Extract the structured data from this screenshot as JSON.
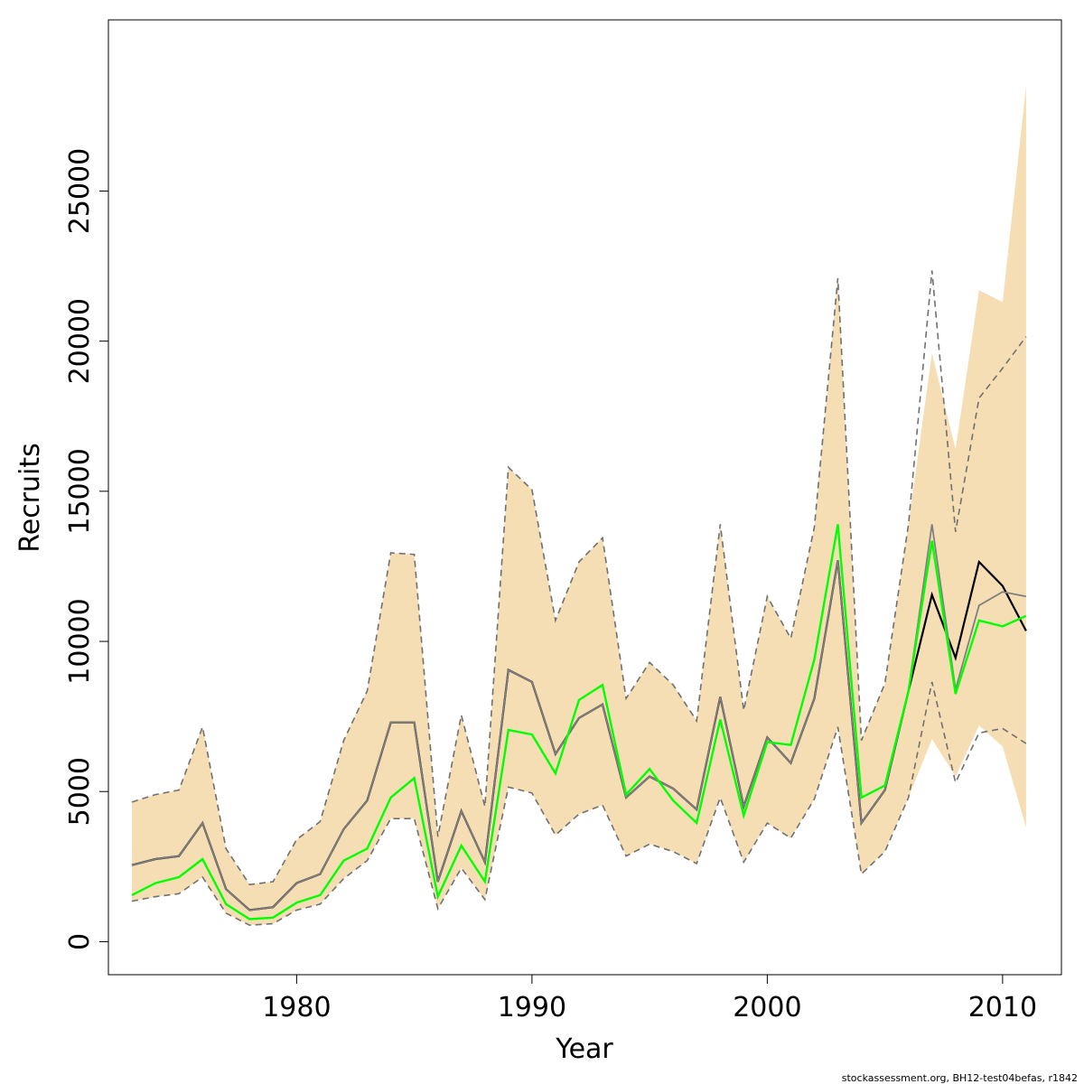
{
  "chart_data": {
    "type": "line",
    "xlabel": "Year",
    "ylabel": "Recruits",
    "xlim": [
      1972,
      2012.5
    ],
    "ylim": [
      -1100,
      30700
    ],
    "xticks": [
      1980,
      1990,
      2000,
      2010
    ],
    "yticks": [
      0,
      5000,
      10000,
      15000,
      20000,
      25000
    ],
    "grid": false,
    "footer": "stockassessment.org, BH12-test04befas, r1842",
    "colors": {
      "band": "#f5deb3",
      "black_line": "#000000",
      "gray_line": "#808080",
      "green_line": "#00ff00",
      "dashed": "#707070"
    },
    "x": [
      1973,
      1974,
      1975,
      1976,
      1977,
      1978,
      1979,
      1980,
      1981,
      1982,
      1983,
      1984,
      1985,
      1986,
      1987,
      1988,
      1989,
      1990,
      1991,
      1992,
      1993,
      1994,
      1995,
      1996,
      1997,
      1998,
      1999,
      2000,
      2001,
      2002,
      2003,
      2004,
      2005,
      2006,
      2007,
      2008,
      2009,
      2010,
      2011
    ],
    "band": {
      "upper": [
        4650,
        4900,
        5050,
        7150,
        3100,
        1900,
        2000,
        3400,
        4000,
        6700,
        8350,
        12950,
        12900,
        3500,
        7550,
        4500,
        15800,
        15050,
        10700,
        12650,
        13450,
        8100,
        9300,
        8550,
        7350,
        13900,
        7700,
        11500,
        10100,
        13800,
        22100,
        6700,
        8600,
        13900,
        19600,
        16400,
        21700,
        21300,
        28500
      ],
      "lower": [
        1350,
        1500,
        1600,
        2150,
        950,
        550,
        600,
        1050,
        1250,
        2100,
        2700,
        4100,
        4100,
        1100,
        2450,
        1400,
        5150,
        4950,
        3550,
        4250,
        4550,
        2850,
        3250,
        3000,
        2600,
        4800,
        2650,
        3950,
        3450,
        4750,
        7150,
        2250,
        3000,
        4800,
        6750,
        5500,
        7200,
        6500,
        3800
      ]
    },
    "series": [
      {
        "values": [
          2550,
          2750,
          2850,
          3950,
          1750,
          1050,
          1150,
          1950,
          2250,
          3750,
          4700,
          7300,
          7300,
          2000,
          4350,
          2650,
          9050,
          8650,
          6250,
          7450,
          7900,
          4800,
          5500,
          5100,
          4400,
          8150,
          4500,
          6800,
          5950,
          8100,
          12700,
          3950,
          5050,
          8350,
          11550,
          9450,
          12650,
          11850,
          10350
        ]
      },
      {
        "values": [
          2550,
          2750,
          2850,
          3950,
          1750,
          1050,
          1150,
          1950,
          2250,
          3750,
          4700,
          7300,
          7300,
          2000,
          4350,
          2650,
          9050,
          8650,
          6250,
          7450,
          7900,
          4800,
          5500,
          5100,
          4400,
          8150,
          4500,
          6800,
          5950,
          8100,
          12700,
          3950,
          5050,
          8350,
          13900,
          8400,
          11200,
          11650,
          11500
        ]
      },
      {
        "values": [
          1550,
          1950,
          2150,
          2750,
          1250,
          750,
          800,
          1300,
          1550,
          2700,
          3100,
          4800,
          5450,
          1500,
          3200,
          2000,
          7050,
          6900,
          5600,
          8050,
          8550,
          4900,
          5750,
          4700,
          3950,
          7400,
          4200,
          6650,
          6550,
          9400,
          13900,
          4800,
          5200,
          8350,
          13350,
          8250,
          10700,
          10500,
          10850
        ]
      }
    ],
    "dashed_upper": [
      4650,
      4900,
      5050,
      7150,
      3100,
      1900,
      2000,
      3400,
      4000,
      6700,
      8350,
      12950,
      12900,
      3500,
      7550,
      4500,
      15800,
      15050,
      10700,
      12650,
      13450,
      8100,
      9300,
      8550,
      7350,
      13900,
      7700,
      11500,
      10100,
      13800,
      22100,
      6700,
      8600,
      13900,
      22350,
      13650,
      18100,
      19100,
      20150
    ],
    "dashed_lower": [
      1350,
      1500,
      1600,
      2150,
      950,
      550,
      600,
      1050,
      1250,
      2100,
      2700,
      4100,
      4100,
      1100,
      2450,
      1400,
      5150,
      4950,
      3550,
      4250,
      4550,
      2850,
      3250,
      3000,
      2600,
      4800,
      2650,
      3950,
      3450,
      4750,
      7150,
      2250,
      3000,
      4800,
      8650,
      5300,
      6950,
      7100,
      6600
    ]
  }
}
